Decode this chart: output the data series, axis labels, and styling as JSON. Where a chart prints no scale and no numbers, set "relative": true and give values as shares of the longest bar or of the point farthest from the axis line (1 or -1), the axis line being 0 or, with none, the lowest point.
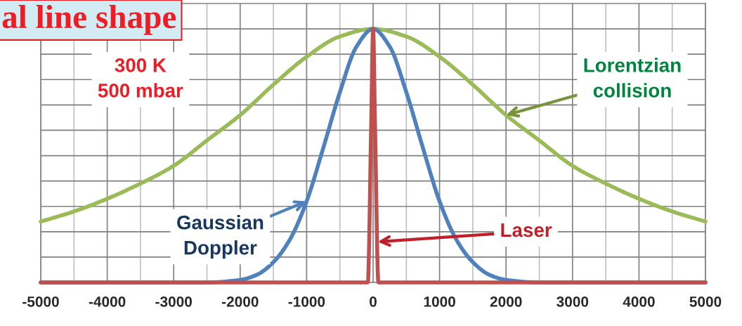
{
  "chart_data": {
    "type": "line",
    "title": "al line shape",
    "relative": true,
    "grid": true,
    "marker": "none",
    "line_style": "solid",
    "tick_labels": "x",
    "xlim": [
      -5000,
      5000
    ],
    "xticks": [
      -5000,
      -4000,
      -3000,
      -2000,
      -1000,
      0,
      1000,
      2000,
      3000,
      4000,
      5000
    ],
    "series": [
      {
        "color": "#9bbb59",
        "x": [
          -5000,
          -4500,
          -4000,
          -3500,
          -3000,
          -2500,
          -2000,
          -1500,
          -1000,
          -500,
          0,
          500,
          1000,
          1500,
          2000,
          2500,
          3000,
          3500,
          4000,
          4500,
          5000
        ],
        "values": [
          0.24,
          0.28,
          0.33,
          0.39,
          0.46,
          0.56,
          0.66,
          0.78,
          0.89,
          0.97,
          1,
          0.97,
          0.89,
          0.78,
          0.66,
          0.56,
          0.46,
          0.39,
          0.33,
          0.28,
          0.24
        ]
      },
      {
        "color": "#4f81bd",
        "x": [
          -5000,
          -2500,
          -2000,
          -1750,
          -1500,
          -1250,
          -1000,
          -750,
          -500,
          -250,
          0,
          250,
          500,
          750,
          1000,
          1250,
          1500,
          1750,
          2000,
          2500,
          5000
        ],
        "values": [
          0,
          0,
          0.01,
          0.03,
          0.08,
          0.17,
          0.32,
          0.53,
          0.75,
          0.93,
          1,
          0.93,
          0.75,
          0.53,
          0.32,
          0.17,
          0.08,
          0.03,
          0.01,
          0,
          0
        ]
      },
      {
        "color": "#c0504d",
        "x": [
          -5000,
          -80,
          -30,
          0,
          30,
          80,
          5000
        ],
        "values": [
          0,
          0,
          0.6,
          1,
          0.6,
          0,
          0
        ]
      }
    ],
    "annotations": [
      "300 K\n500 mbar",
      {
        "text": "Lorentzian\ncollision",
        "x": 2000,
        "y": 0.66
      },
      {
        "text": "Gaussian\nDoppler",
        "x": -1000,
        "y": 0.32
      },
      {
        "text": "Laser",
        "x": 68,
        "y": 0.16
      }
    ]
  }
}
